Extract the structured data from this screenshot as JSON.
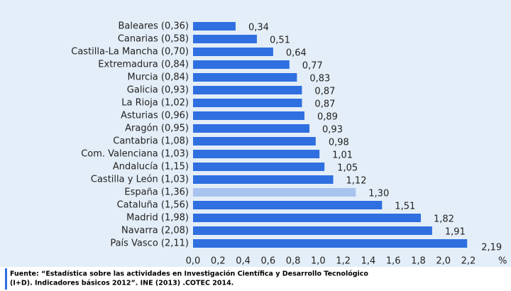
{
  "chart_data": {
    "type": "barh",
    "categories": [
      "Baleares (0,36)",
      "Canarias (0,58)",
      "Castilla-La Mancha (0,70)",
      "Extremadura (0,84)",
      "Murcia (0,84)",
      "Galicia (0,93)",
      "La Rioja (1,02)",
      "Asturias (0,96)",
      "Aragón (0,95)",
      "Cantabria (1,08)",
      "Com. Valenciana (1,03)",
      "Andalucía (1,15)",
      "Castilla y León (1,03)",
      "España (1,36)",
      "Cataluña (1,56)",
      "Madrid (1,98)",
      "Navarra (2,08)",
      "País Vasco (2,11)"
    ],
    "values": [
      0.34,
      0.51,
      0.64,
      0.77,
      0.83,
      0.87,
      0.87,
      0.89,
      0.93,
      0.98,
      1.01,
      1.05,
      1.12,
      1.3,
      1.51,
      1.82,
      1.91,
      2.19
    ],
    "value_labels": [
      "0,34",
      "0,51",
      "0,64",
      "0,77",
      "0,83",
      "0,87",
      "0,87",
      "0,89",
      "0,93",
      "0,98",
      "1,01",
      "1,05",
      "1,12",
      "1,30",
      "1,51",
      "1,82",
      "1,91",
      "2,19"
    ],
    "colors": [
      "#2f6fe0",
      "#2f6fe0",
      "#2f6fe0",
      "#2f6fe0",
      "#2f6fe0",
      "#2f6fe0",
      "#2f6fe0",
      "#2f6fe0",
      "#2f6fe0",
      "#2f6fe0",
      "#2f6fe0",
      "#2f6fe0",
      "#2f6fe0",
      "#a9c3ef",
      "#2f6fe0",
      "#2f6fe0",
      "#2f6fe0",
      "#2f6fe0"
    ],
    "xlim": [
      0,
      2.2
    ],
    "xticks": [
      {
        "value": 0,
        "label": "0,0"
      },
      {
        "value": 0.2,
        "label": "0,2"
      },
      {
        "value": 0.4,
        "label": "0,4"
      },
      {
        "value": 0.6,
        "label": "0,6"
      },
      {
        "value": 0.8,
        "label": "0,8"
      },
      {
        "value": 1.0,
        "label": "1,0"
      },
      {
        "value": 1.2,
        "label": "1,2"
      },
      {
        "value": 1.4,
        "label": "1,4"
      },
      {
        "value": 1.6,
        "label": "1,6"
      },
      {
        "value": 1.8,
        "label": "1,8"
      },
      {
        "value": 2.0,
        "label": "2,0"
      },
      {
        "value": 2.2,
        "label": "2,2"
      }
    ],
    "x_label": "%",
    "source": [
      "Fuente: “Estadística sobre las actividades en Investigación Científica y Desarrollo Tecnológico",
      "(I+D). Indicadores básicos 2012”. INE (2013) .COTEC 2014."
    ]
  }
}
